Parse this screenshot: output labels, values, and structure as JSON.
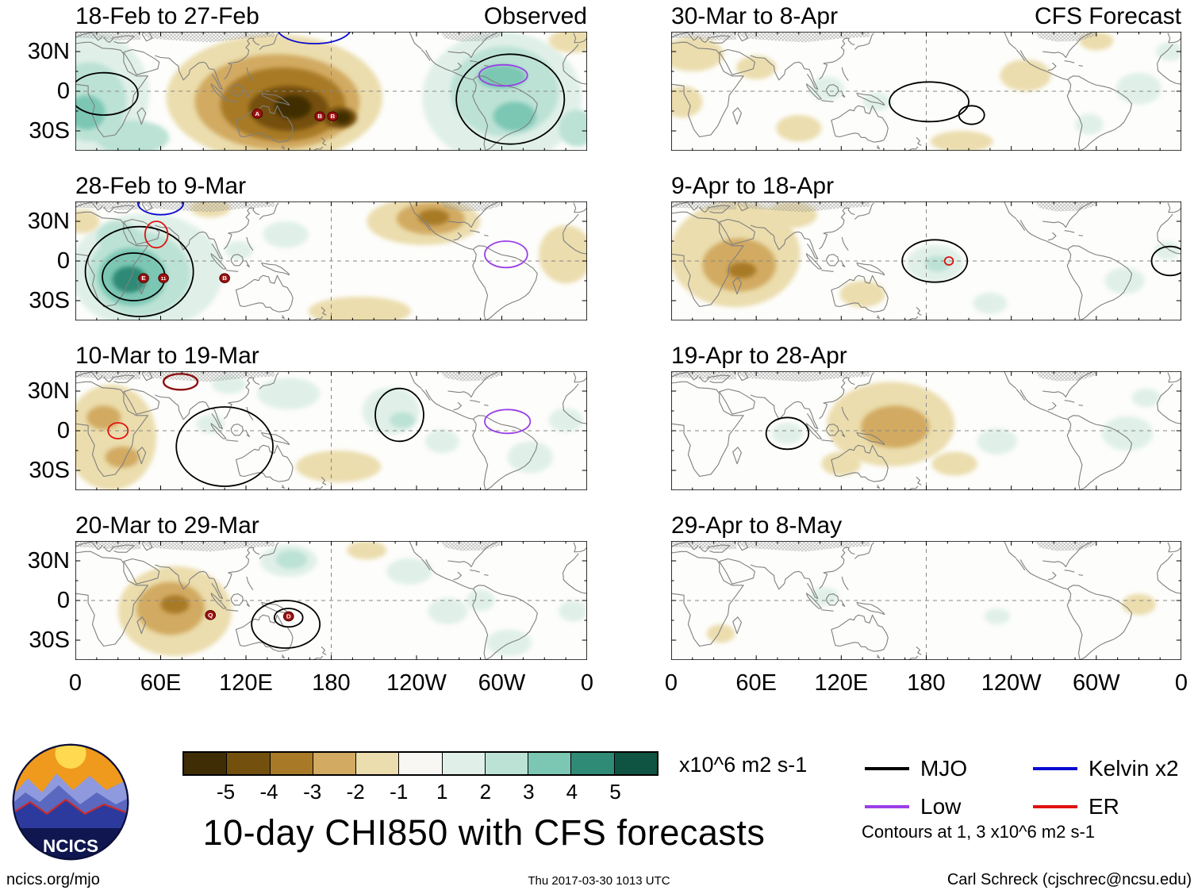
{
  "figure": {
    "title": "10-day CHI850 with CFS forecasts",
    "footer_left": "ncics.org/mjo",
    "footer_center": "Thu 2017-03-30 1013 UTC",
    "footer_right": "Carl Schreck (cjschrec@ncsu.edu)",
    "logo_text": "NCICS"
  },
  "colorbar": {
    "tick_labels": [
      "-5",
      "-4",
      "-3",
      "-2",
      "-1",
      "1",
      "2",
      "3",
      "4",
      "5"
    ],
    "units": "x10^6 m2 s-1",
    "cell_colors": [
      "#3f2d05",
      "#74500e",
      "#a87a28",
      "#d2aa62",
      "#ebddad",
      "#f8f7f3",
      "#e0f0e9",
      "#bce2d5",
      "#7cc7b4",
      "#2f8a76",
      "#0f5342"
    ]
  },
  "legend": {
    "items": [
      {
        "id": "mjo",
        "label": "MJO",
        "color": "#000000"
      },
      {
        "id": "kelvin",
        "label": "Kelvin x2",
        "color": "#0a0ad0"
      },
      {
        "id": "low",
        "label": "Low",
        "color": "#9a3fe8"
      },
      {
        "id": "er",
        "label": "ER",
        "color": "#e01212"
      }
    ],
    "note": "Contours at 1, 3 x10^6 m2 s-1"
  },
  "axes": {
    "lat_tick_labels": [
      "30N",
      "0",
      "30S"
    ],
    "lon_tick_labels": [
      "0",
      "60E",
      "120E",
      "180",
      "120W",
      "60W",
      "0"
    ]
  },
  "chart_data": {
    "type": "heatmap",
    "variable": "CHI850 velocity potential anomaly",
    "units": "x10^6 m2 s-1",
    "lon_range": [
      0,
      360
    ],
    "lat_range": [
      -45,
      45
    ],
    "contour_levels_note": "Contours at 1, 3 x10^6 m2 s-1",
    "level_colors": {
      "-1": "#ebddad",
      "-2": "#d2aa62",
      "-3": "#a87a28",
      "-4": "#74500e",
      "-5": "#3f2d05",
      "1": "#e0f0e9",
      "2": "#bce2d5",
      "3": "#7cc7b4",
      "4": "#2f8a76",
      "5": "#0f5342"
    },
    "contour_colors": {
      "mjo": "#000000",
      "kelvin": "#0a0ad0",
      "low": "#9a3fe8",
      "er": "#e01212",
      "er3": "#8c1010"
    },
    "panels": [
      {
        "title": "18-Feb to 27-Feb",
        "tag": "Observed",
        "blobs": [
          [
            12,
            -2,
            40,
            46,
            1
          ],
          [
            40,
            -35,
            26,
            13,
            2
          ],
          [
            10,
            -8,
            26,
            30,
            2
          ],
          [
            8,
            -16,
            13,
            13,
            3
          ],
          [
            140,
            -5,
            76,
            48,
            -1
          ],
          [
            142,
            -8,
            58,
            36,
            -2
          ],
          [
            146,
            -10,
            44,
            28,
            -3
          ],
          [
            150,
            -13,
            28,
            17,
            -4
          ],
          [
            153,
            -12,
            13,
            9,
            -5
          ],
          [
            186,
            -20,
            12,
            8,
            -4
          ],
          [
            188,
            -20,
            6,
            5,
            -5
          ],
          [
            300,
            -5,
            56,
            50,
            1
          ],
          [
            302,
            0,
            38,
            34,
            2
          ],
          [
            300,
            11,
            17,
            9,
            3
          ],
          [
            309,
            -19,
            15,
            11,
            3
          ],
          [
            350,
            38,
            17,
            9,
            -1
          ],
          [
            353,
            -28,
            13,
            14,
            2
          ]
        ],
        "contours": [
          [
            20,
            -2,
            24,
            16,
            "mjo"
          ],
          [
            306,
            -6,
            38,
            34,
            "mjo"
          ],
          [
            168,
            48,
            26,
            12,
            "kelvin"
          ],
          [
            301,
            12,
            17,
            8,
            "low"
          ]
        ],
        "markers": [
          [
            128,
            -17,
            "A"
          ],
          [
            172,
            -19,
            "B"
          ],
          [
            181,
            -19,
            "B"
          ]
        ]
      },
      {
        "title": "28-Feb to 9-Mar",
        "tag": "",
        "blobs": [
          [
            50,
            -8,
            54,
            44,
            1
          ],
          [
            45,
            -10,
            36,
            32,
            2
          ],
          [
            40,
            -12,
            24,
            22,
            3
          ],
          [
            38,
            -14,
            12,
            10,
            4
          ],
          [
            30,
            18,
            15,
            12,
            2
          ],
          [
            115,
            8,
            10,
            7,
            1
          ],
          [
            148,
            20,
            16,
            10,
            1
          ],
          [
            245,
            30,
            40,
            18,
            -1
          ],
          [
            250,
            32,
            24,
            12,
            -2
          ],
          [
            252,
            33,
            11,
            6,
            -3
          ],
          [
            345,
            5,
            19,
            22,
            -1
          ],
          [
            200,
            -38,
            36,
            11,
            -1
          ],
          [
            5,
            30,
            12,
            9,
            -1
          ],
          [
            95,
            40,
            14,
            7,
            -1
          ]
        ],
        "contours": [
          [
            45,
            -8,
            38,
            34,
            "mjo"
          ],
          [
            41,
            -12,
            22,
            18,
            "mjo"
          ],
          [
            60,
            44,
            16,
            9,
            "kelvin"
          ],
          [
            57,
            20,
            8,
            10,
            "er"
          ],
          [
            303,
            5,
            15,
            10,
            "low"
          ]
        ],
        "markers": [
          [
            48,
            -13,
            "E"
          ],
          [
            62,
            -13,
            "11"
          ],
          [
            105,
            -13,
            "B"
          ]
        ]
      },
      {
        "title": "10-Mar to 19-Mar",
        "tag": "",
        "blobs": [
          [
            25,
            -5,
            32,
            40,
            -1
          ],
          [
            20,
            10,
            12,
            9,
            -2
          ],
          [
            33,
            -20,
            12,
            8,
            -2
          ],
          [
            185,
            -27,
            30,
            12,
            -1
          ],
          [
            150,
            28,
            22,
            12,
            1
          ],
          [
            222,
            15,
            20,
            18,
            1
          ],
          [
            230,
            8,
            9,
            6,
            2
          ],
          [
            258,
            -8,
            12,
            9,
            1
          ],
          [
            320,
            -20,
            16,
            12,
            1
          ],
          [
            345,
            8,
            12,
            9,
            1
          ],
          [
            108,
            35,
            12,
            7,
            1
          ],
          [
            95,
            5,
            10,
            7,
            1
          ]
        ],
        "contours": [
          [
            105,
            -12,
            34,
            30,
            "mjo"
          ],
          [
            228,
            12,
            17,
            20,
            "mjo"
          ],
          [
            74,
            37,
            12,
            6,
            "er3"
          ],
          [
            30,
            0,
            7,
            6,
            "er"
          ],
          [
            304,
            7,
            16,
            9,
            "low"
          ]
        ],
        "markers": []
      },
      {
        "title": "20-Mar to 29-Mar",
        "tag": "",
        "blobs": [
          [
            70,
            -8,
            40,
            34,
            -1
          ],
          [
            67,
            -6,
            24,
            20,
            -2
          ],
          [
            70,
            -3,
            10,
            7,
            -3
          ],
          [
            150,
            30,
            20,
            12,
            1
          ],
          [
            152,
            31,
            11,
            7,
            2
          ],
          [
            235,
            22,
            16,
            10,
            1
          ],
          [
            262,
            -8,
            14,
            10,
            1
          ],
          [
            285,
            0,
            10,
            8,
            1
          ],
          [
            305,
            -32,
            16,
            10,
            1
          ],
          [
            350,
            -8,
            10,
            8,
            1
          ],
          [
            205,
            38,
            14,
            7,
            -1
          ]
        ],
        "contours": [
          [
            148,
            -18,
            24,
            18,
            "mjo"
          ],
          [
            150,
            -13,
            10,
            7,
            "mjo"
          ]
        ],
        "markers": [
          [
            95,
            -11,
            "Q"
          ],
          [
            150,
            -12,
            "D"
          ]
        ]
      },
      {
        "title": "30-Mar to 8-Apr",
        "tag": "CFS Forecast",
        "blobs": [
          [
            15,
            28,
            22,
            13,
            -1
          ],
          [
            8,
            -8,
            14,
            12,
            -1
          ],
          [
            60,
            18,
            14,
            9,
            -1
          ],
          [
            90,
            -28,
            16,
            10,
            -1
          ],
          [
            250,
            12,
            18,
            12,
            -1
          ],
          [
            205,
            -38,
            22,
            8,
            -1
          ],
          [
            300,
            38,
            12,
            7,
            -1
          ],
          [
            110,
            2,
            12,
            9,
            1
          ],
          [
            145,
            -8,
            10,
            7,
            1
          ],
          [
            330,
            2,
            16,
            12,
            1
          ],
          [
            352,
            30,
            10,
            7,
            1
          ],
          [
            295,
            -25,
            10,
            8,
            1
          ]
        ],
        "contours": [
          [
            182,
            -8,
            28,
            15,
            "mjo"
          ],
          [
            212,
            -18,
            9,
            7,
            "mjo"
          ]
        ],
        "markers": []
      },
      {
        "title": "9-Apr to 18-Apr",
        "tag": "",
        "blobs": [
          [
            45,
            5,
            46,
            40,
            -1
          ],
          [
            48,
            -3,
            26,
            20,
            -2
          ],
          [
            50,
            -7,
            10,
            6,
            -3
          ],
          [
            85,
            35,
            18,
            10,
            -1
          ],
          [
            135,
            -25,
            16,
            10,
            -1
          ],
          [
            186,
            -2,
            20,
            14,
            1
          ],
          [
            188,
            -2,
            9,
            6,
            2
          ],
          [
            320,
            -15,
            14,
            10,
            1
          ],
          [
            225,
            -32,
            12,
            8,
            1
          ],
          [
            350,
            8,
            9,
            7,
            1
          ]
        ],
        "contours": [
          [
            186,
            0,
            23,
            16,
            "mjo"
          ],
          [
            352,
            0,
            13,
            11,
            "mjo"
          ],
          [
            196,
            0,
            3,
            3,
            "er"
          ]
        ],
        "markers": []
      },
      {
        "title": "19-Apr to 28-Apr",
        "tag": "",
        "blobs": [
          [
            155,
            5,
            45,
            32,
            -1
          ],
          [
            158,
            3,
            24,
            16,
            -2
          ],
          [
            200,
            -25,
            16,
            9,
            -1
          ],
          [
            120,
            -25,
            14,
            9,
            -1
          ],
          [
            82,
            -2,
            11,
            8,
            1
          ],
          [
            230,
            -8,
            14,
            10,
            1
          ],
          [
            322,
            -2,
            18,
            13,
            1
          ],
          [
            335,
            25,
            10,
            7,
            1
          ]
        ],
        "contours": [
          [
            82,
            -2,
            15,
            12,
            "mjo"
          ]
        ],
        "markers": []
      },
      {
        "title": "29-Apr to 8-May",
        "tag": "",
        "blobs": [
          [
            108,
            3,
            10,
            7,
            1
          ],
          [
            230,
            -12,
            9,
            6,
            1
          ],
          [
            330,
            -3,
            12,
            8,
            -1
          ],
          [
            35,
            -25,
            10,
            7,
            -1
          ]
        ],
        "contours": [],
        "markers": []
      }
    ]
  }
}
